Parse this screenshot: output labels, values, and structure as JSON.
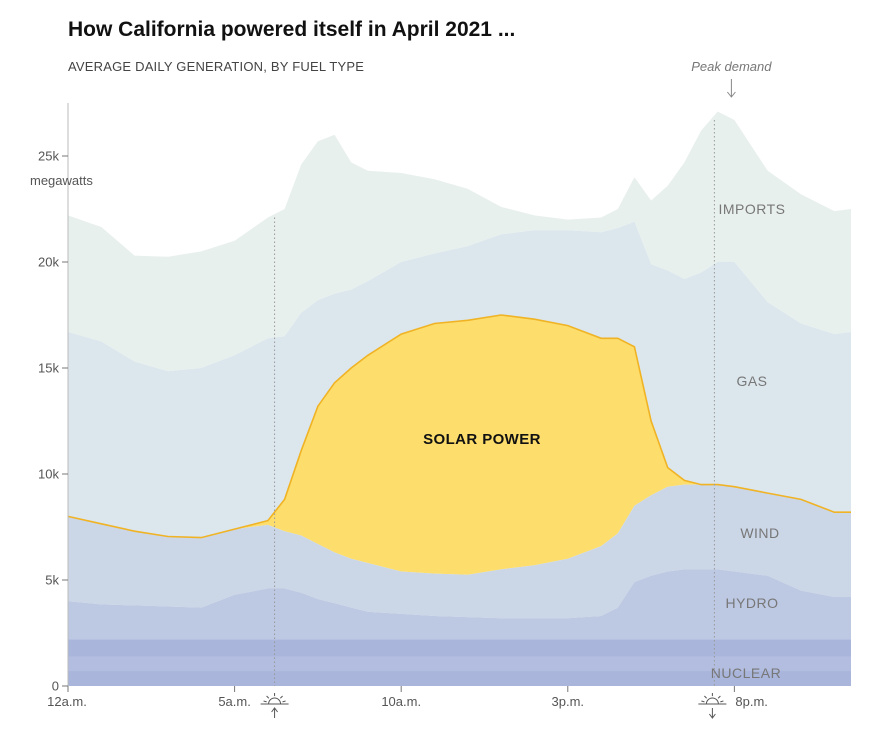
{
  "title": "How California powered itself in April 2021 ...",
  "subtitle": "AVERAGE DAILY GENERATION, BY FUEL TYPE",
  "annotation": "Peak demand",
  "colors": {
    "imports": "#e8f0ee",
    "gas": "#dce6ed",
    "solar": "#fdde6c",
    "solar_edge": "#f0b324",
    "wind": "#cbd6e7",
    "hydro": "#bdc8e2",
    "nuclear": "#a9b5da",
    "nuclear_band": "#b2bddf"
  },
  "icons": [
    "sunrise-icon",
    "sunset-icon"
  ],
  "chart_data": {
    "type": "area",
    "stacked": true,
    "ylabel": "megawatts",
    "ylim": [
      0,
      27500
    ],
    "yticks": [
      0,
      5000,
      10000,
      15000,
      20000,
      25000
    ],
    "ytick_labels": [
      "0",
      "5k",
      "10k",
      "15k",
      "20k",
      "25k"
    ],
    "xlim": [
      0,
      23.5
    ],
    "xticks": [
      0,
      5,
      10,
      15,
      20
    ],
    "xtick_labels": [
      "12a.m.",
      "5a.m.",
      "10a.m.",
      "3p.m.",
      "8p.m."
    ],
    "markers": {
      "sunrise": 6.2,
      "sunset": 19.4,
      "peak_demand": 19.4
    },
    "series_labels": [
      "IMPORTS",
      "GAS",
      "SOLAR POWER",
      "WIND",
      "HYDRO",
      "NUCLEAR"
    ],
    "x": [
      0,
      1,
      2,
      3,
      4,
      5,
      6,
      6.5,
      7,
      7.5,
      8,
      8.5,
      9,
      10,
      11,
      12,
      13,
      14,
      15,
      16,
      16.5,
      17,
      17.5,
      18,
      18.5,
      19,
      19.5,
      20,
      21,
      22,
      23,
      23.5
    ],
    "series": [
      {
        "name": "NUCLEAR",
        "values": [
          2200,
          2200,
          2200,
          2200,
          2200,
          2200,
          2200,
          2200,
          2200,
          2200,
          2200,
          2200,
          2200,
          2200,
          2200,
          2200,
          2200,
          2200,
          2200,
          2200,
          2200,
          2200,
          2200,
          2200,
          2200,
          2200,
          2200,
          2200,
          2200,
          2200,
          2200,
          2200
        ]
      },
      {
        "name": "HYDRO",
        "values": [
          1800,
          1650,
          1600,
          1550,
          1500,
          2100,
          2400,
          2400,
          2200,
          1900,
          1700,
          1500,
          1300,
          1200,
          1100,
          1050,
          1000,
          1000,
          1000,
          1100,
          1500,
          2700,
          3000,
          3200,
          3300,
          3300,
          3300,
          3200,
          3000,
          2300,
          2000,
          2000
        ]
      },
      {
        "name": "WIND",
        "values": [
          4000,
          3800,
          3500,
          3300,
          3300,
          3100,
          3000,
          2700,
          2700,
          2600,
          2400,
          2300,
          2300,
          2000,
          2000,
          2000,
          2300,
          2500,
          2800,
          3300,
          3500,
          3600,
          3800,
          4000,
          4000,
          4000,
          4000,
          4000,
          3900,
          4300,
          4000,
          4000
        ]
      },
      {
        "name": "SOLAR POWER",
        "values": [
          0,
          0,
          0,
          0,
          0,
          0,
          200,
          1500,
          4000,
          6500,
          8000,
          9000,
          9800,
          11200,
          11800,
          12000,
          12000,
          11600,
          11000,
          9800,
          9200,
          7500,
          3500,
          900,
          200,
          0,
          0,
          0,
          0,
          0,
          0,
          0
        ]
      },
      {
        "name": "GAS",
        "values": [
          8700,
          8600,
          8000,
          7800,
          8000,
          8200,
          8600,
          7700,
          6500,
          5000,
          4200,
          3700,
          3500,
          3400,
          3300,
          3500,
          3800,
          4200,
          4500,
          5000,
          5200,
          5900,
          7400,
          9300,
          9500,
          10000,
          10500,
          10600,
          9000,
          8300,
          8400,
          8500
        ]
      },
      {
        "name": "IMPORTS",
        "values": [
          5500,
          5400,
          5000,
          5400,
          5500,
          5400,
          5700,
          6000,
          7000,
          7500,
          7500,
          6000,
          5200,
          4200,
          3500,
          2700,
          1300,
          700,
          500,
          700,
          900,
          2100,
          3000,
          4000,
          5500,
          6700,
          7100,
          6700,
          6200,
          6100,
          5800,
          5800
        ]
      }
    ]
  }
}
